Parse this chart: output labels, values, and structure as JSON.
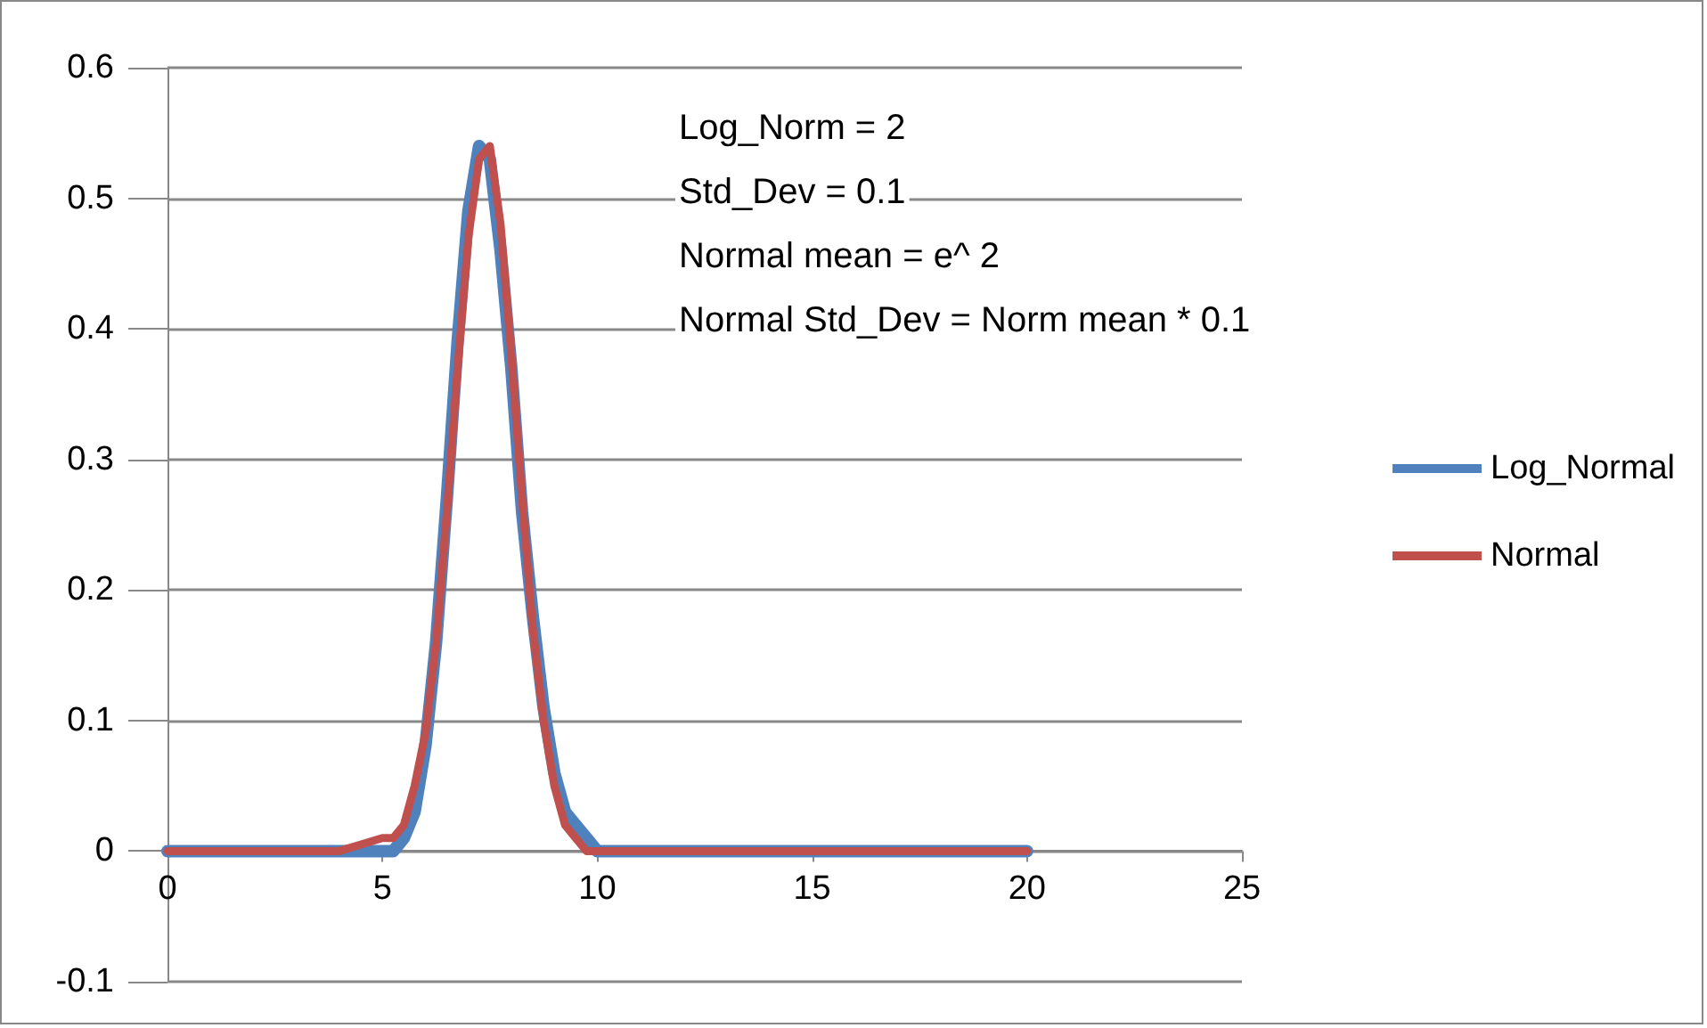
{
  "chart_data": {
    "type": "line",
    "annotations": [
      "Log_Norm = 2",
      "Std_Dev = 0.1",
      "Normal mean = e^ 2",
      "Normal Std_Dev = Norm mean * 0.1"
    ],
    "x": [
      0,
      4,
      5,
      5.25,
      5.5,
      5.75,
      6,
      6.25,
      6.5,
      6.75,
      7,
      7.25,
      7.5,
      7.75,
      8,
      8.25,
      8.5,
      8.75,
      9,
      9.25,
      9.5,
      9.75,
      10,
      11,
      20
    ],
    "series": [
      {
        "name": "Log_Normal",
        "color": "#4f81bd",
        "values": [
          0,
          0,
          0,
          0,
          0.01,
          0.03,
          0.08,
          0.16,
          0.27,
          0.39,
          0.49,
          0.54,
          0.53,
          0.46,
          0.37,
          0.26,
          0.18,
          0.11,
          0.06,
          0.03,
          0.02,
          0.01,
          0,
          0,
          0
        ]
      },
      {
        "name": "Normal",
        "color": "#c0504d",
        "values": [
          0,
          0,
          0.01,
          0.01,
          0.02,
          0.05,
          0.09,
          0.16,
          0.26,
          0.37,
          0.47,
          0.53,
          0.54,
          0.48,
          0.38,
          0.27,
          0.17,
          0.1,
          0.05,
          0.02,
          0.01,
          0,
          0,
          0,
          0
        ]
      }
    ],
    "xlim": [
      0,
      25
    ],
    "xticks": [
      0,
      5,
      10,
      15,
      20,
      25
    ],
    "ylim": [
      -0.1,
      0.6
    ],
    "yticks": [
      -0.1,
      0,
      0.1,
      0.2,
      0.3,
      0.4,
      0.5,
      0.6
    ],
    "grid": "y",
    "legend": "right",
    "marker": "none",
    "line_style": "solid"
  }
}
